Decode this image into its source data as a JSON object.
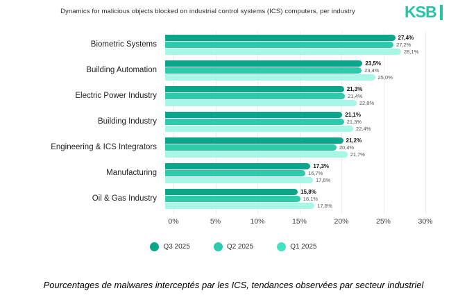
{
  "header": {
    "title": "Dynamics for malicious objects blocked on industrial control systems (ICS) computers, per industry",
    "logo_text": "KSB",
    "logo_color": "#26c4a6"
  },
  "chart_data": {
    "type": "bar",
    "orientation": "horizontal",
    "title": "Dynamics for malicious objects blocked on industrial control systems (ICS) computers, per industry",
    "categories": [
      "Biometric Systems",
      "Building Automation",
      "Electric Power Industry",
      "Building Industry",
      "Engineering & ICS Integrators",
      "Manufacturing",
      "Oil & Gas Industry"
    ],
    "series": [
      {
        "name": "Q3 2025",
        "color": "#0aa58b",
        "legend_dot_color": "#0aa58b",
        "values": [
          27.4,
          23.5,
          21.3,
          21.1,
          21.2,
          17.3,
          15.8
        ],
        "labels": [
          "27,4%",
          "23,5%",
          "21,3%",
          "21,1%",
          "21,2%",
          "17,3%",
          "15,8%"
        ]
      },
      {
        "name": "Q2 2025",
        "color": "#2fc9ab",
        "legend_dot_color": "#2fc9ab",
        "values": [
          27.2,
          23.4,
          21.4,
          21.3,
          20.4,
          16.7,
          16.1
        ],
        "labels": [
          "27,2%",
          "23,4%",
          "21,4%",
          "21,3%",
          "20,4%",
          "16,7%",
          "16,1%"
        ]
      },
      {
        "name": "Q1 2025",
        "color": "#a8f6e6",
        "legend_dot_color": "#45e2c1",
        "values": [
          28.1,
          25.0,
          22.8,
          22.4,
          21.7,
          17.6,
          17.8
        ],
        "labels": [
          "28,1%",
          "25,0%",
          "22,8%",
          "22,4%",
          "21,7%",
          "17,6%",
          "17,8%"
        ]
      }
    ],
    "xlim": [
      0,
      30
    ],
    "x_ticks": [
      "0%",
      "5%",
      "10%",
      "15%",
      "20%",
      "25%",
      "30%"
    ],
    "grid": true,
    "gridline_color": "#ececec",
    "legend_position": "bottom"
  },
  "caption": "Pourcentages de malwares interceptés par les ICS, tendances observées par secteur industriel"
}
